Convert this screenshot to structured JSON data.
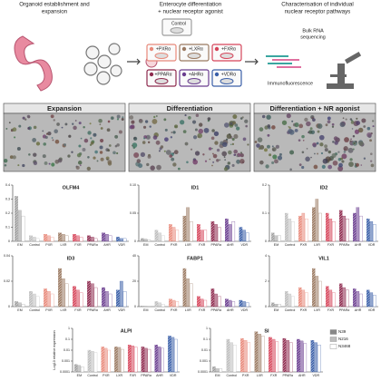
{
  "figure": {
    "steps": [
      [
        "Organoid establishment and",
        "expansion"
      ],
      [
        "Enterocyte differentiation",
        "+ nuclear receptor agonist"
      ],
      [
        "Characterisation of individual",
        "nuclear receptor pathways"
      ]
    ],
    "treatments": [
      "Control",
      "+PXRα",
      "+LXRα",
      "+FXRα",
      "+PPARα",
      "+AHRα",
      "+VDRα"
    ],
    "treatment_colors": [
      "#9e9e9e",
      "#e8897a",
      "#9b7a62",
      "#d6455a",
      "#8e2a4e",
      "#6a3d8f",
      "#3a5fa8"
    ],
    "methods": [
      [
        "Bulk RNA",
        "sequencing"
      ],
      [
        "Immunofluorescence"
      ]
    ],
    "panels": [
      "Expansion",
      "Differentiation",
      "Differentiation + NR agonist"
    ],
    "category_colors": [
      "#9e9e9e",
      "#bdbdbd",
      "#e8897a",
      "#9b7a62",
      "#d6455a",
      "#8e2a4e",
      "#6a3d8f",
      "#3a5fa8"
    ]
  },
  "chart_data": [
    {
      "type": "bar",
      "title": "OLFM4",
      "categories": [
        "EM",
        "Control",
        "PXR",
        "LXR",
        "FXR",
        "PPARα",
        "AHR",
        "VDR"
      ],
      "series": [
        {
          "values": [
            0.32,
            0.04,
            0.05,
            0.06,
            0.05,
            0.04,
            0.06,
            0.03
          ]
        },
        {
          "values": [
            0.22,
            0.03,
            0.04,
            0.05,
            0.04,
            0.03,
            0.05,
            0.02
          ]
        },
        {
          "values": [
            0.18,
            0.02,
            0.03,
            0.04,
            0.03,
            0.02,
            0.04,
            0.02
          ]
        }
      ],
      "ylim": [
        0,
        0.4
      ],
      "yticks": [
        0,
        0.1,
        0.2,
        0.3,
        0.4
      ]
    },
    {
      "type": "bar",
      "title": "ID1",
      "categories": [
        "EM",
        "Control",
        "PXR",
        "LXR",
        "FXR",
        "PPARα",
        "AHR",
        "VDR"
      ],
      "series": [
        {
          "values": [
            0.005,
            0.02,
            0.03,
            0.045,
            0.03,
            0.035,
            0.04,
            0.025
          ]
        },
        {
          "values": [
            0.004,
            0.015,
            0.025,
            0.06,
            0.02,
            0.03,
            0.03,
            0.02
          ]
        },
        {
          "values": [
            0.003,
            0.01,
            0.02,
            0.035,
            0.02,
            0.025,
            0.035,
            0.015
          ]
        }
      ],
      "ylim": [
        0,
        0.1
      ],
      "yticks": [
        0,
        0.05,
        {
          "value": 0.1,
          "label": "0.10"
        }
      ]
    },
    {
      "type": "bar",
      "title": "ID2",
      "categories": [
        "EM",
        "Control",
        "PXR",
        "LXR",
        "FXR",
        "PPARα",
        "AHR",
        "VDR"
      ],
      "series": [
        {
          "values": [
            0.03,
            0.1,
            0.09,
            0.12,
            0.1,
            0.11,
            0.1,
            0.08
          ]
        },
        {
          "values": [
            0.02,
            0.08,
            0.1,
            0.15,
            0.08,
            0.09,
            0.12,
            0.07
          ]
        },
        {
          "values": [
            0.02,
            0.07,
            0.08,
            0.1,
            0.07,
            0.08,
            0.09,
            0.06
          ]
        }
      ],
      "ylim": [
        0,
        0.2
      ],
      "yticks": [
        0,
        0.1,
        0.2
      ]
    },
    {
      "type": "bar",
      "title": "ID3",
      "categories": [
        "EM",
        "Control",
        "PXR",
        "LXR",
        "FXR",
        "PPARα",
        "AHR",
        "VDR"
      ],
      "series": [
        {
          "values": [
            0.004,
            0.012,
            0.014,
            0.03,
            0.016,
            0.02,
            0.015,
            0.013
          ]
        },
        {
          "values": [
            0.003,
            0.01,
            0.012,
            0.022,
            0.013,
            0.018,
            0.012,
            0.02
          ]
        },
        {
          "values": [
            0.002,
            0.008,
            0.01,
            0.018,
            0.011,
            0.015,
            0.01,
            0.012
          ]
        }
      ],
      "ylim": [
        0,
        0.04
      ],
      "yticks": [
        0,
        0.02,
        0.04
      ]
    },
    {
      "type": "bar",
      "title": "FABP1",
      "categories": [
        "EM",
        "Control",
        "PXR",
        "LXR",
        "FXR",
        "PPARα",
        "AHR",
        "VDR"
      ],
      "series": [
        {
          "values": [
            0.5,
            4,
            6,
            30,
            8,
            14,
            6,
            5
          ]
        },
        {
          "values": [
            0.3,
            3,
            5,
            22,
            6,
            10,
            5,
            4
          ]
        },
        {
          "values": [
            0.2,
            2,
            4,
            18,
            5,
            8,
            4,
            3
          ]
        }
      ],
      "ylim": [
        0,
        40
      ],
      "yticks": [
        0,
        20,
        40
      ]
    },
    {
      "type": "bar",
      "title": "VIL1",
      "categories": [
        "EM",
        "Control",
        "PXR",
        "LXR",
        "FXR",
        "PPARα",
        "AHR",
        "VDR"
      ],
      "series": [
        {
          "values": [
            0.3,
            1.2,
            1.5,
            3,
            1.6,
            1.8,
            1.4,
            1.3
          ]
        },
        {
          "values": [
            0.2,
            1,
            1.3,
            2.4,
            1.3,
            1.5,
            1.2,
            1.1
          ]
        },
        {
          "values": [
            0.2,
            0.8,
            1.1,
            2,
            1.1,
            1.3,
            1,
            0.9
          ]
        }
      ],
      "ylim": [
        0,
        4
      ],
      "yticks": [
        0,
        2,
        4
      ]
    },
    {
      "type": "bar",
      "title": "ALPI",
      "ylabel": "Log10 relative expression",
      "log": true,
      "categories": [
        "EM",
        "Control",
        "PXR",
        "LXR",
        "FXR",
        "PPARα",
        "AHR",
        "VDR"
      ],
      "series": [
        {
          "values": [
            0.0005,
            0.01,
            0.02,
            0.02,
            0.03,
            0.02,
            0.03,
            0.2
          ]
        },
        {
          "values": [
            0.0004,
            0.008,
            0.015,
            0.018,
            0.025,
            0.015,
            0.02,
            0.15
          ]
        },
        {
          "values": [
            0.0003,
            0.006,
            0.01,
            0.012,
            0.02,
            0.012,
            0.015,
            0.1
          ]
        }
      ],
      "ylim": [
        0.0001,
        1
      ],
      "yticks": [
        0.0001,
        0.001,
        0.01,
        0.1,
        1
      ]
    },
    {
      "type": "bar",
      "title": "SI",
      "log": true,
      "categories": [
        "EM",
        "Control",
        "PXR",
        "LXR",
        "FXR",
        "PPARα",
        "AHR",
        "VDR"
      ],
      "series": [
        {
          "name": "N39",
          "values": [
            0.0003,
            0.1,
            0.12,
            0.5,
            0.15,
            0.12,
            0.1,
            0.08
          ]
        },
        {
          "name": "N216",
          "values": [
            0.0002,
            0.05,
            0.08,
            0.3,
            0.1,
            0.08,
            0.07,
            0.05
          ]
        },
        {
          "name": "N3468",
          "values": [
            0.0002,
            0.03,
            0.05,
            0.2,
            0.06,
            0.05,
            0.04,
            0.03
          ]
        }
      ],
      "ylim": [
        0.0001,
        1
      ],
      "yticks": [
        0.0001,
        0.001,
        0.01,
        0.1,
        1
      ],
      "legend": "right"
    }
  ]
}
